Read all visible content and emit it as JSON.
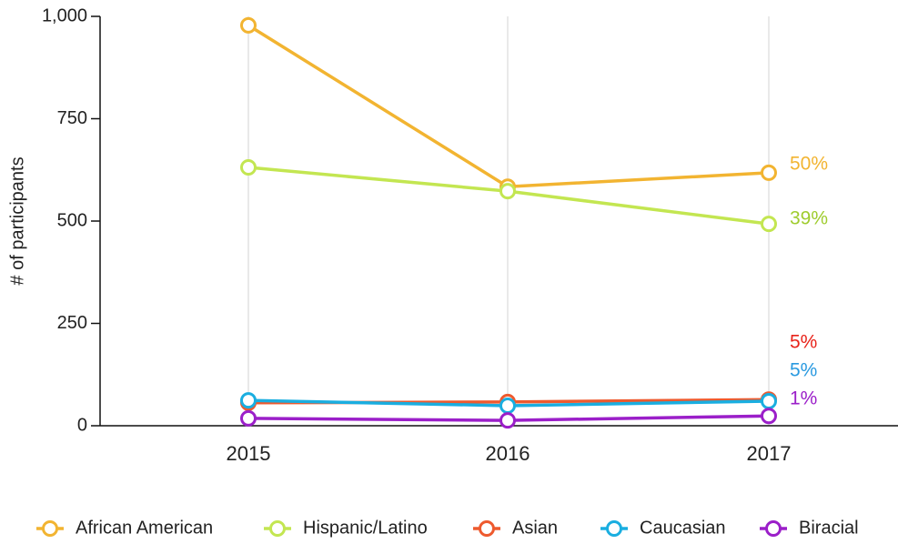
{
  "chart_data": {
    "type": "line",
    "y_label": "# of participants",
    "categories": [
      "2015",
      "2016",
      "2017"
    ],
    "ylim": [
      0,
      1000
    ],
    "yticks": [
      0,
      250,
      500,
      750,
      {
        "value": 1000,
        "label": "1,000"
      }
    ],
    "grid": true,
    "legend": "bottom",
    "series": [
      {
        "name": "African American",
        "color": "#f2b431",
        "values": [
          978,
          584,
          618
        ],
        "annotation": "50%",
        "annotation_color": "#f2b431"
      },
      {
        "name": "Hispanic/Latino",
        "color": "#c3e651",
        "values": [
          631,
          573,
          493
        ],
        "annotation": "39%",
        "annotation_color": "#9fcc2e"
      },
      {
        "name": "Asian",
        "color": "#ee5a2e",
        "values": [
          56,
          58,
          64
        ],
        "annotation": "5%",
        "annotation_color": "#e8231a"
      },
      {
        "name": "Caucasian",
        "color": "#1aaee0",
        "values": [
          62,
          49,
          60
        ],
        "annotation": "5%",
        "annotation_color": "#2a9ae0"
      },
      {
        "name": "Biracial",
        "color": "#9b1fc9",
        "values": [
          18,
          13,
          24
        ],
        "annotation": "1%",
        "annotation_color": "#9b1fc9"
      }
    ]
  }
}
